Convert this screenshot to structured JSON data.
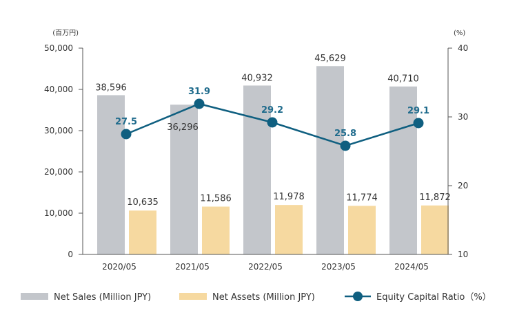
{
  "chart_data": {
    "type": "bar",
    "categories": [
      "2020/05",
      "2021/05",
      "2022/05",
      "2023/05",
      "2024/05"
    ],
    "series": [
      {
        "name": "Net Sales (Million JPY)",
        "type": "bar",
        "axis": "left",
        "color": "#c3c6cb",
        "values": [
          38596,
          36296,
          40932,
          45629,
          40710
        ],
        "labels": [
          "38,596",
          "36,296",
          "40,932",
          "45,629",
          "40,710"
        ]
      },
      {
        "name": "Net Assets (Million JPY)",
        "type": "bar",
        "axis": "left",
        "color": "#f6d9a0",
        "values": [
          10635,
          11586,
          11978,
          11774,
          11872
        ],
        "labels": [
          "10,635",
          "11,586",
          "11,978",
          "11,774",
          "11,872"
        ]
      },
      {
        "name": "Equity Capital Ratio（%）",
        "type": "line",
        "axis": "right",
        "color": "#0f5f80",
        "values": [
          27.5,
          31.9,
          29.2,
          25.8,
          29.1
        ],
        "labels": [
          "27.5",
          "31.9",
          "29.2",
          "25.8",
          "29.1"
        ]
      }
    ],
    "left_axis": {
      "unit": "(百万円)",
      "ylim": [
        0,
        50000
      ],
      "ticks": [
        0,
        10000,
        20000,
        30000,
        40000,
        50000
      ],
      "tick_labels": [
        "0",
        "10,000",
        "20,000",
        "30,000",
        "40,000",
        "50,000"
      ]
    },
    "right_axis": {
      "unit": "(%)",
      "ylim": [
        10,
        40
      ],
      "ticks": [
        10,
        20,
        30,
        40
      ],
      "tick_labels": [
        "10",
        "20",
        "30",
        "40"
      ]
    },
    "legend_position": "bottom",
    "grid": false
  }
}
